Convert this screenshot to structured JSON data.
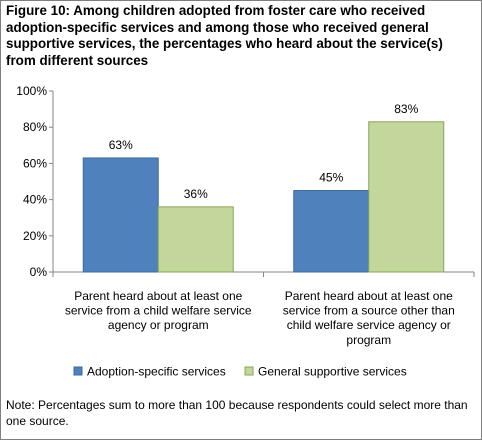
{
  "title": "Figure 10: Among children adopted from foster care who received adoption-specific services and among those who received general supportive services, the percentages who heard about the service(s) from different sources",
  "note": "Note: Percentages sum to more than 100 because respondents could select more than one source.",
  "chart_data": {
    "type": "bar",
    "title": "Figure 10: Among children adopted from foster care who received adoption-specific services and among those who received general supportive services, the percentages who heard about the service(s) from different sources",
    "xlabel": "",
    "ylabel": "",
    "ylim": [
      0,
      100
    ],
    "yticks": [
      "0%",
      "20%",
      "40%",
      "60%",
      "80%",
      "100%"
    ],
    "categories": [
      [
        "Parent heard about  at least one",
        "service from a child welfare service",
        "agency or program"
      ],
      [
        "Parent heard about  at least one",
        "service from a source other than",
        "child welfare service agency or",
        "program"
      ]
    ],
    "series": [
      {
        "name": "Adoption-specific services",
        "values": [
          63,
          45
        ],
        "labels": [
          "63%",
          "45%"
        ],
        "color": "#4f81bd",
        "stroke": "#3b6aa0"
      },
      {
        "name": "General supportive services",
        "values": [
          36,
          83
        ],
        "labels": [
          "36%",
          "83%"
        ],
        "color": "#c3d69b",
        "stroke": "#8aa558"
      }
    ],
    "grid": false,
    "legend": "bottom"
  }
}
